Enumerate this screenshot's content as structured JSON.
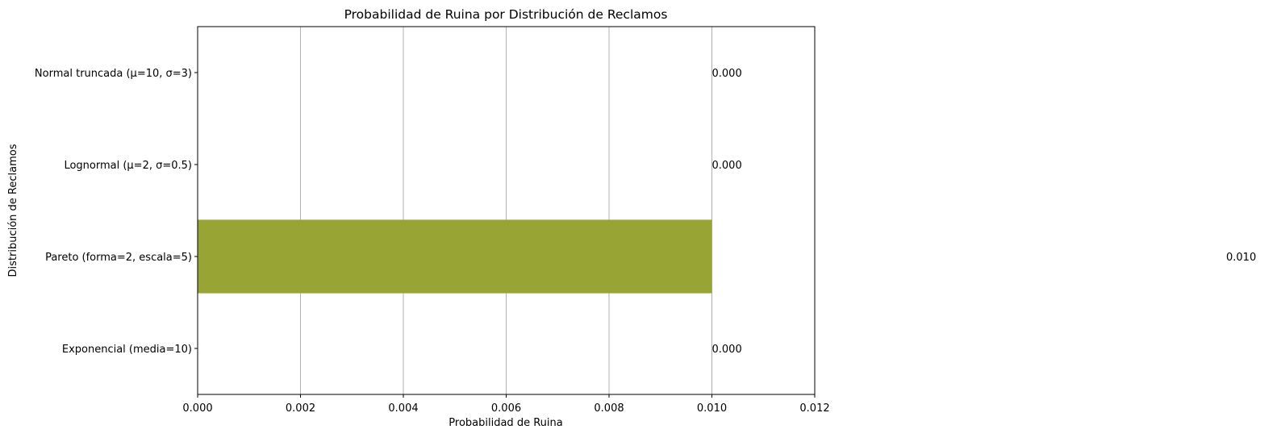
{
  "chart_data": {
    "type": "bar",
    "orientation": "horizontal",
    "title": "Probabilidad de Ruina por Distribución de Reclamos",
    "xlabel": "Probabilidad de Ruina",
    "ylabel": "Distribución de Reclamos",
    "categories": [
      "Exponencial (media=10)",
      "Pareto (forma=2, escala=5)",
      "Lognormal (μ=2, σ=0.5)",
      "Normal truncada (μ=10, σ=3)"
    ],
    "values": [
      0.0,
      0.01,
      0.0,
      0.0
    ],
    "data_labels": [
      "0.000",
      "0.010",
      "0.000",
      "0.000"
    ],
    "xlim": [
      0,
      0.012
    ],
    "xticks": [
      0,
      0.002,
      0.004,
      0.006,
      0.008,
      0.01,
      0.012
    ],
    "xtick_labels": [
      "0.000",
      "0.002",
      "0.004",
      "0.006",
      "0.008",
      "0.010",
      "0.012"
    ],
    "grid": "vertical",
    "bar_color": "#98a535"
  }
}
